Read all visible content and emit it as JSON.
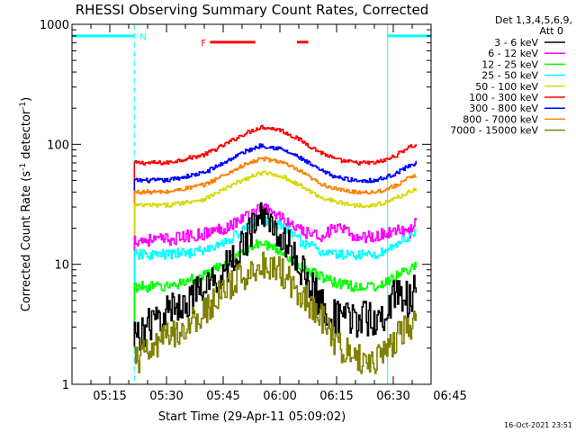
{
  "chart_data": {
    "type": "line",
    "title": "RHESSI Observing Summary Count Rates, Corrected",
    "xlabel": "Start Time (29-Apr-11 05:09:02)",
    "ylabel": "Corrected Count Rate (s⁻¹ detector⁻¹)",
    "ylabel_parts": {
      "main": "Corrected Count Rate (s",
      "exp1": "-1",
      "mid": " detector",
      "exp2": "-1",
      "end": ")"
    },
    "yscale": "log",
    "xlim_minutes": [
      5.0,
      100.0
    ],
    "ylim": [
      1,
      1000
    ],
    "xticks": [
      {
        "min": 15,
        "label": "05:15"
      },
      {
        "min": 30,
        "label": "05:30"
      },
      {
        "min": 45,
        "label": "05:45"
      },
      {
        "min": 60,
        "label": "06:00"
      },
      {
        "min": 75,
        "label": "06:15"
      },
      {
        "min": 90,
        "label": "06:30"
      },
      {
        "min": 105,
        "label": "06:45"
      }
    ],
    "yticks": [
      {
        "value": 1,
        "label": "1"
      },
      {
        "value": 10,
        "label": "10"
      },
      {
        "value": 100,
        "label": "100"
      },
      {
        "value": 1000,
        "label": "1000"
      }
    ],
    "legend": {
      "header": [
        "Det 1,3,4,5,6,9,",
        "Att 0"
      ],
      "placement": "right",
      "entries": [
        {
          "label": "3 - 6 keV",
          "color": "#000000"
        },
        {
          "label": "6 - 12 keV",
          "color": "#ff00ff"
        },
        {
          "label": "12 - 25 keV",
          "color": "#00ff00"
        },
        {
          "label": "25 - 50 keV",
          "color": "#00ffff"
        },
        {
          "label": "50 - 100 keV",
          "color": "#d8d800"
        },
        {
          "label": "100 - 300 keV",
          "color": "#ff0000"
        },
        {
          "label": "300 - 800 keV",
          "color": "#0000ff"
        },
        {
          "label": "800 - 7000 keV",
          "color": "#ff8000"
        },
        {
          "label": "7000 - 15000 keV",
          "color": "#808000"
        }
      ]
    },
    "series": [
      {
        "name": "100 - 300 keV",
        "color": "#ff0000",
        "x": [
          21.5,
          30,
          40,
          45,
          50,
          55,
          60,
          65,
          70,
          75,
          80,
          85,
          88,
          91,
          94,
          96
        ],
        "y": [
          70,
          70,
          82,
          98,
          120,
          140,
          132,
          110,
          88,
          74,
          70,
          70,
          74,
          82,
          95,
          98
        ]
      },
      {
        "name": "300 - 800 keV",
        "color": "#0000ff",
        "x": [
          21.5,
          30,
          40,
          45,
          50,
          55,
          60,
          65,
          70,
          75,
          80,
          85,
          88,
          91,
          94,
          96
        ],
        "y": [
          50,
          50,
          58,
          70,
          85,
          98,
          92,
          78,
          62,
          53,
          50,
          50,
          53,
          58,
          66,
          70
        ]
      },
      {
        "name": "800 - 7000 keV",
        "color": "#ff8000",
        "x": [
          21.5,
          30,
          40,
          45,
          50,
          55,
          60,
          65,
          70,
          75,
          80,
          85,
          88,
          91,
          94,
          96
        ],
        "y": [
          40,
          40,
          46,
          55,
          66,
          76,
          72,
          60,
          48,
          42,
          40,
          40,
          42,
          46,
          52,
          55
        ]
      },
      {
        "name": "50 - 100 keV",
        "color": "#d8d800",
        "x": [
          21.5,
          30,
          40,
          45,
          50,
          55,
          60,
          65,
          70,
          75,
          80,
          85,
          88,
          91,
          94,
          96
        ],
        "y": [
          31,
          31,
          35,
          42,
          50,
          58,
          55,
          46,
          37,
          33,
          31,
          31,
          33,
          36,
          40,
          43
        ]
      },
      {
        "name": "6 - 12 keV",
        "color": "#ff00ff",
        "x": [
          21.5,
          30,
          40,
          45,
          50,
          55,
          60,
          65,
          70,
          75,
          80,
          85,
          88,
          91,
          94,
          96
        ],
        "y": [
          16,
          16,
          18,
          20,
          24,
          30,
          25,
          19,
          17,
          20,
          17,
          17,
          18,
          20,
          18,
          22
        ]
      },
      {
        "name": "25 - 50 keV",
        "color": "#00ffff",
        "x": [
          21.5,
          30,
          40,
          45,
          50,
          55,
          60,
          65,
          70,
          75,
          80,
          85,
          88,
          91,
          94,
          96
        ],
        "y": [
          12,
          12,
          13,
          15,
          19,
          24,
          21,
          16,
          13,
          12,
          12,
          12,
          13,
          15,
          17,
          18
        ]
      },
      {
        "name": "12 - 25 keV",
        "color": "#00ff00",
        "x": [
          21.5,
          30,
          40,
          45,
          50,
          55,
          60,
          65,
          70,
          75,
          80,
          85,
          88,
          91,
          94,
          96
        ],
        "y": [
          6.5,
          6.5,
          8,
          10,
          13,
          15,
          13,
          10,
          8,
          7,
          6.5,
          6.5,
          7,
          8,
          9,
          10
        ]
      },
      {
        "name": "3 - 6 keV",
        "color": "#000000",
        "x": [
          21.5,
          25,
          30,
          35,
          40,
          45,
          50,
          55,
          60,
          65,
          70,
          75,
          80,
          85,
          88,
          91,
          94,
          96
        ],
        "y": [
          2.5,
          3,
          4,
          5,
          6,
          9,
          14,
          26,
          18,
          10,
          5,
          3.5,
          3.5,
          3.5,
          4,
          6,
          5,
          6
        ]
      },
      {
        "name": "7000 - 15000 keV",
        "color": "#808000",
        "x": [
          21.5,
          25,
          30,
          35,
          40,
          45,
          50,
          55,
          60,
          65,
          70,
          75,
          80,
          85,
          88,
          91,
          94,
          96
        ],
        "y": [
          1.6,
          1.8,
          2.5,
          3,
          4,
          6,
          8,
          10,
          9,
          6,
          4,
          2.2,
          1.6,
          1.6,
          2,
          2.5,
          3,
          3.5
        ]
      }
    ],
    "annotations": [
      {
        "text": "N",
        "color": "#00ffff",
        "segments_min": [
          [
            5.0,
            21.5
          ],
          [
            88.5,
            100.0
          ]
        ],
        "level": 800
      },
      {
        "text": "F",
        "color": "#ff0000",
        "segments_min": [
          [
            41.5,
            53.5
          ],
          [
            64.5,
            67.5
          ]
        ],
        "level": 710
      }
    ],
    "vlines_min": [
      5.0,
      21.5,
      88.5,
      100.0
    ],
    "footer_timestamp": "16-Oct-2021 23:51"
  }
}
